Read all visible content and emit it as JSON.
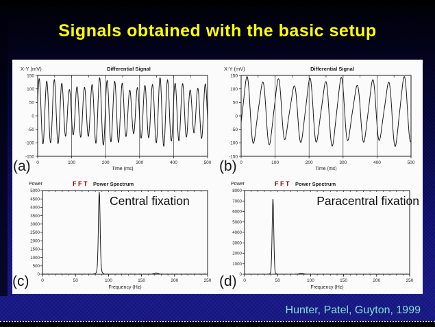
{
  "slide": {
    "title": "Signals obtained with the basic setup",
    "citation": "Hunter, Patel, Guyton, 1999",
    "colors": {
      "background_top": "#010108",
      "background_bottom": "#1D1D96",
      "title_text": "#FFFF00",
      "citation_text": "#7FE0CF",
      "fft_label": "#8B0000",
      "figure_panel": "#FBFBFB",
      "figure_ink": "#1B1B1B"
    }
  },
  "chart_data": [
    {
      "id": "a",
      "type": "line",
      "corner_label": "(a)",
      "title": "Differential Signal",
      "y_axis_label": "X-Y (mV)",
      "x_label": "Time (ms)",
      "xlim": [
        0,
        500
      ],
      "ylim": [
        -150,
        150
      ],
      "x_ticks": [
        0,
        100,
        200,
        300,
        400,
        500
      ],
      "y_ticks": [
        150,
        100,
        50,
        0,
        -50,
        -100,
        -150
      ],
      "gridlines_x": [
        100,
        200,
        300,
        400
      ],
      "series": {
        "name": "x-y-differential-signal-central",
        "approx_freq_hz": 86,
        "visible_cycles": 22.5,
        "offset_mv": 15,
        "base_amp_mv": 104,
        "amp_mod": [
          [
            173,
            18,
            0.6
          ],
          [
            61,
            8,
            1.7
          ]
        ],
        "main_coef": 1.0,
        "double_hump_coef": 0,
        "phase": 0.3
      }
    },
    {
      "id": "b",
      "type": "line",
      "corner_label": "(b)",
      "title": "Differential Signal",
      "y_axis_label": "X-Y (mV)",
      "x_label": "Time (ms)",
      "xlim": [
        0,
        500
      ],
      "ylim": [
        -150,
        150
      ],
      "x_ticks": [
        0,
        100,
        200,
        300,
        400,
        500
      ],
      "y_ticks": [
        150,
        100,
        50,
        0,
        -50,
        -100,
        -150
      ],
      "gridlines_x": [
        100,
        200,
        300,
        400
      ],
      "series": {
        "name": "x-y-differential-signal-paracentral",
        "approx_freq_hz": 43,
        "visible_cycles": 10.8,
        "offset_mv": 16,
        "base_amp_mv": 118,
        "amp_mod": [
          [
            92,
            14,
            1.0
          ],
          [
            210,
            8,
            0.2
          ]
        ],
        "main_coef": 0.92,
        "double_hump_coef": 0.16,
        "phase": -0.5
      }
    },
    {
      "id": "c",
      "type": "line",
      "corner_label": "(c)",
      "title": "Power Spectrum",
      "fft_label": "FFT",
      "annotation": "Central fixation",
      "y_axis_label": "Power",
      "x_label": "Frequency (Hz)",
      "xlim": [
        0,
        250
      ],
      "ylim": [
        0,
        5000
      ],
      "x_ticks": [
        0,
        50,
        100,
        150,
        200,
        250
      ],
      "x_minor_step": 10,
      "y_ticks": [
        0,
        500,
        1000,
        1500,
        2000,
        2500,
        3000,
        3500,
        4000,
        4500,
        5000
      ],
      "spectrum": {
        "peak_hz": 86,
        "peak_power": 4600,
        "sigma_hz": 1.3,
        "base_power": 300,
        "base_sigma_hz": 3,
        "harmonic_hz": 172,
        "harmonic_power": 70,
        "baseline_power": 12
      }
    },
    {
      "id": "d",
      "type": "line",
      "corner_label": "(d)",
      "title": "Power Spectrum",
      "fft_label": "FFT",
      "annotation": "Paracentral fixation",
      "y_axis_label": "Power",
      "x_label": "Frequency (Hz)",
      "xlim": [
        0,
        250
      ],
      "ylim": [
        0,
        8000
      ],
      "x_ticks": [
        0,
        50,
        100,
        150,
        200,
        250
      ],
      "x_minor_step": 10,
      "y_ticks": [
        0,
        1000,
        2000,
        3000,
        4000,
        5000,
        6000,
        7000,
        8000
      ],
      "spectrum": {
        "peak_hz": 43,
        "peak_power": 7000,
        "sigma_hz": 1.2,
        "base_power": 260,
        "base_sigma_hz": 2.6,
        "harmonic_hz": 86,
        "harmonic_power": 90,
        "baseline_power": 10
      }
    }
  ]
}
